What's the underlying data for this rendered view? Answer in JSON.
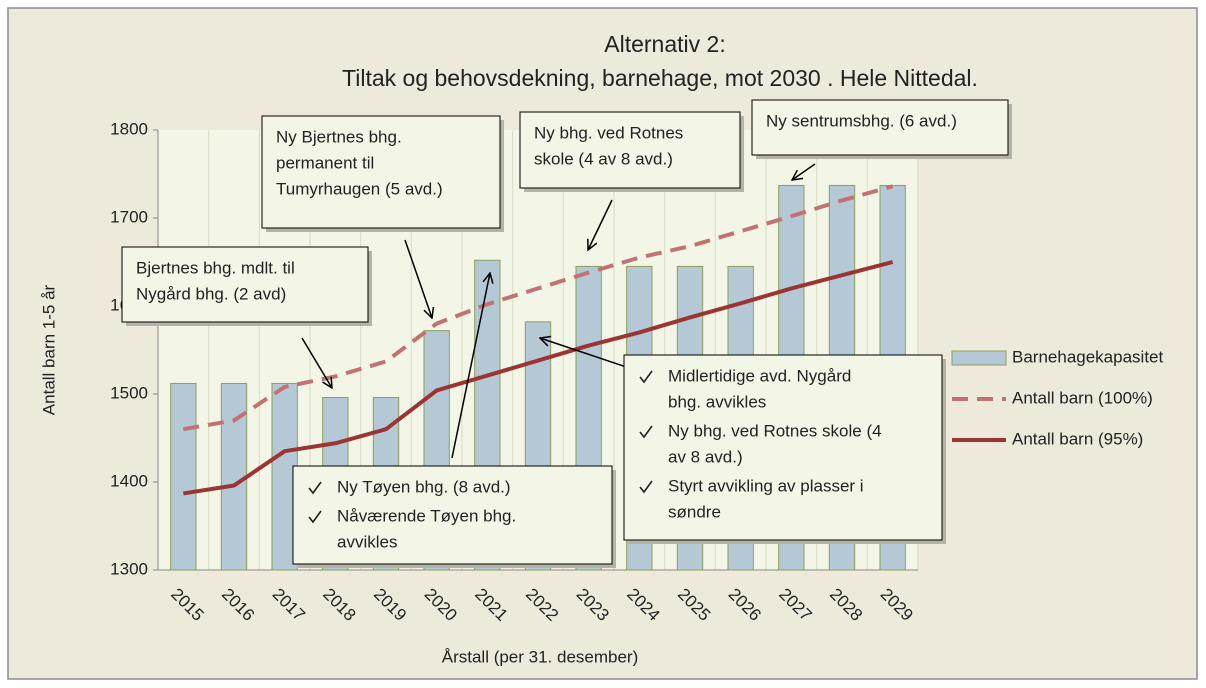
{
  "chart_data": {
    "type": "bar",
    "title": [
      "Alternativ 2:",
      "Tiltak og behovsdekning, barnehage, mot 2030 . Hele Nittedal."
    ],
    "x_label": "Årstall (per 31. desember)",
    "y_label": "Antall barn 1-5 år",
    "categories": [
      "2015",
      "2016",
      "2017",
      "2018",
      "2019",
      "2020",
      "2021",
      "2022",
      "2023",
      "2024",
      "2025",
      "2026",
      "2027",
      "2028",
      "2029"
    ],
    "series": [
      {
        "name": "Barnehagekapasitet",
        "type": "bar",
        "color": "#b5c8d6",
        "values": [
          1512,
          1512,
          1512,
          1496,
          1496,
          1572,
          1652,
          1582,
          1645,
          1645,
          1645,
          1645,
          1737,
          1737,
          1737
        ]
      },
      {
        "name": "Antall barn (100%)",
        "type": "line",
        "dashed": true,
        "color": "#c07372",
        "values": [
          1460,
          1470,
          1508,
          1520,
          1537,
          1580,
          1602,
          1620,
          1638,
          1655,
          1668,
          1685,
          1702,
          1720,
          1736
        ]
      },
      {
        "name": "Antall barn (95%)",
        "type": "line",
        "dashed": false,
        "color": "#9b3534",
        "values": [
          1387,
          1396,
          1435,
          1444,
          1460,
          1504,
          1521,
          1538,
          1555,
          1570,
          1587,
          1603,
          1620,
          1635,
          1650
        ]
      }
    ],
    "ylim": [
      1300,
      1800
    ],
    "yticks": [
      1300,
      1400,
      1500,
      1600,
      1700,
      1800
    ],
    "grid": "vertical",
    "legend": "right",
    "annotations": [
      {
        "lines": [
          "Bjertnes bhg. mdlt. til",
          "Nygård bhg. (2 avd)"
        ]
      },
      {
        "lines": [
          "Ny Bjertnes bhg.",
          "permanent til",
          "Tumyrhaugen (5 avd.)"
        ]
      },
      {
        "lines": [
          "Ny bhg. ved Rotnes",
          "skole (4 av 8 avd.)"
        ]
      },
      {
        "lines": [
          "Ny sentrumsbhg. (6 avd.)"
        ]
      },
      {
        "items": [
          [
            "Ny Tøyen bhg. (8 avd.)"
          ],
          [
            "Nåværende Tøyen bhg.",
            "avvikles"
          ]
        ]
      },
      {
        "items": [
          [
            "Midlertidige avd. Nygård",
            "bhg. avvikles"
          ],
          [
            "Ny bhg. ved Rotnes skole (4",
            "av 8 avd.)"
          ],
          [
            "Styrt avvikling av plasser i",
            "søndre"
          ]
        ]
      }
    ]
  }
}
